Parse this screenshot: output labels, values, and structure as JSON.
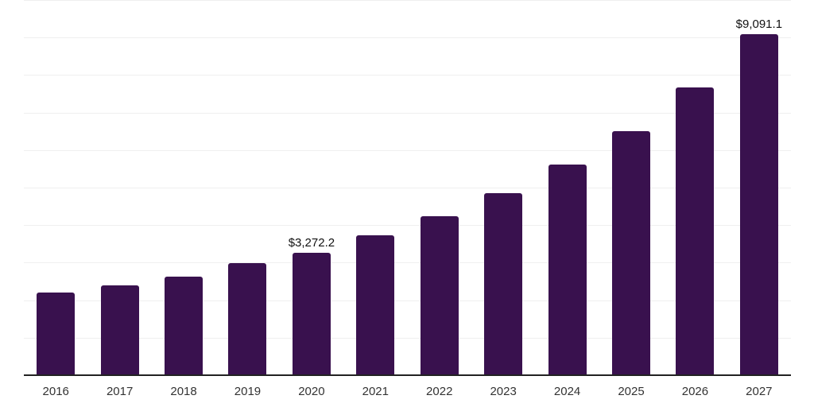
{
  "chart_data": {
    "type": "bar",
    "title": "",
    "xlabel": "",
    "ylabel": "",
    "categories": [
      "2016",
      "2017",
      "2018",
      "2019",
      "2020",
      "2021",
      "2022",
      "2023",
      "2024",
      "2025",
      "2026",
      "2027"
    ],
    "values": [
      2210,
      2400,
      2630,
      2980,
      3272.2,
      3720,
      4240,
      4860,
      5620,
      6510,
      7660,
      9091.1
    ],
    "bar_labels": [
      "",
      "",
      "",
      "",
      "$3,272.2",
      "",
      "",
      "",
      "",
      "",
      "",
      "$9,091.1"
    ],
    "ylim": [
      0,
      10000
    ],
    "gridline_step": 1000,
    "grid": "horizontal-only",
    "y_axis_tick_labels_visible": false,
    "legend_position": "none",
    "colors": {
      "bar": "#39114e",
      "gridline": "#efefef",
      "axis_line": "#222222",
      "tick_label": "#333333",
      "data_label": "#111111",
      "background": "#ffffff"
    }
  }
}
